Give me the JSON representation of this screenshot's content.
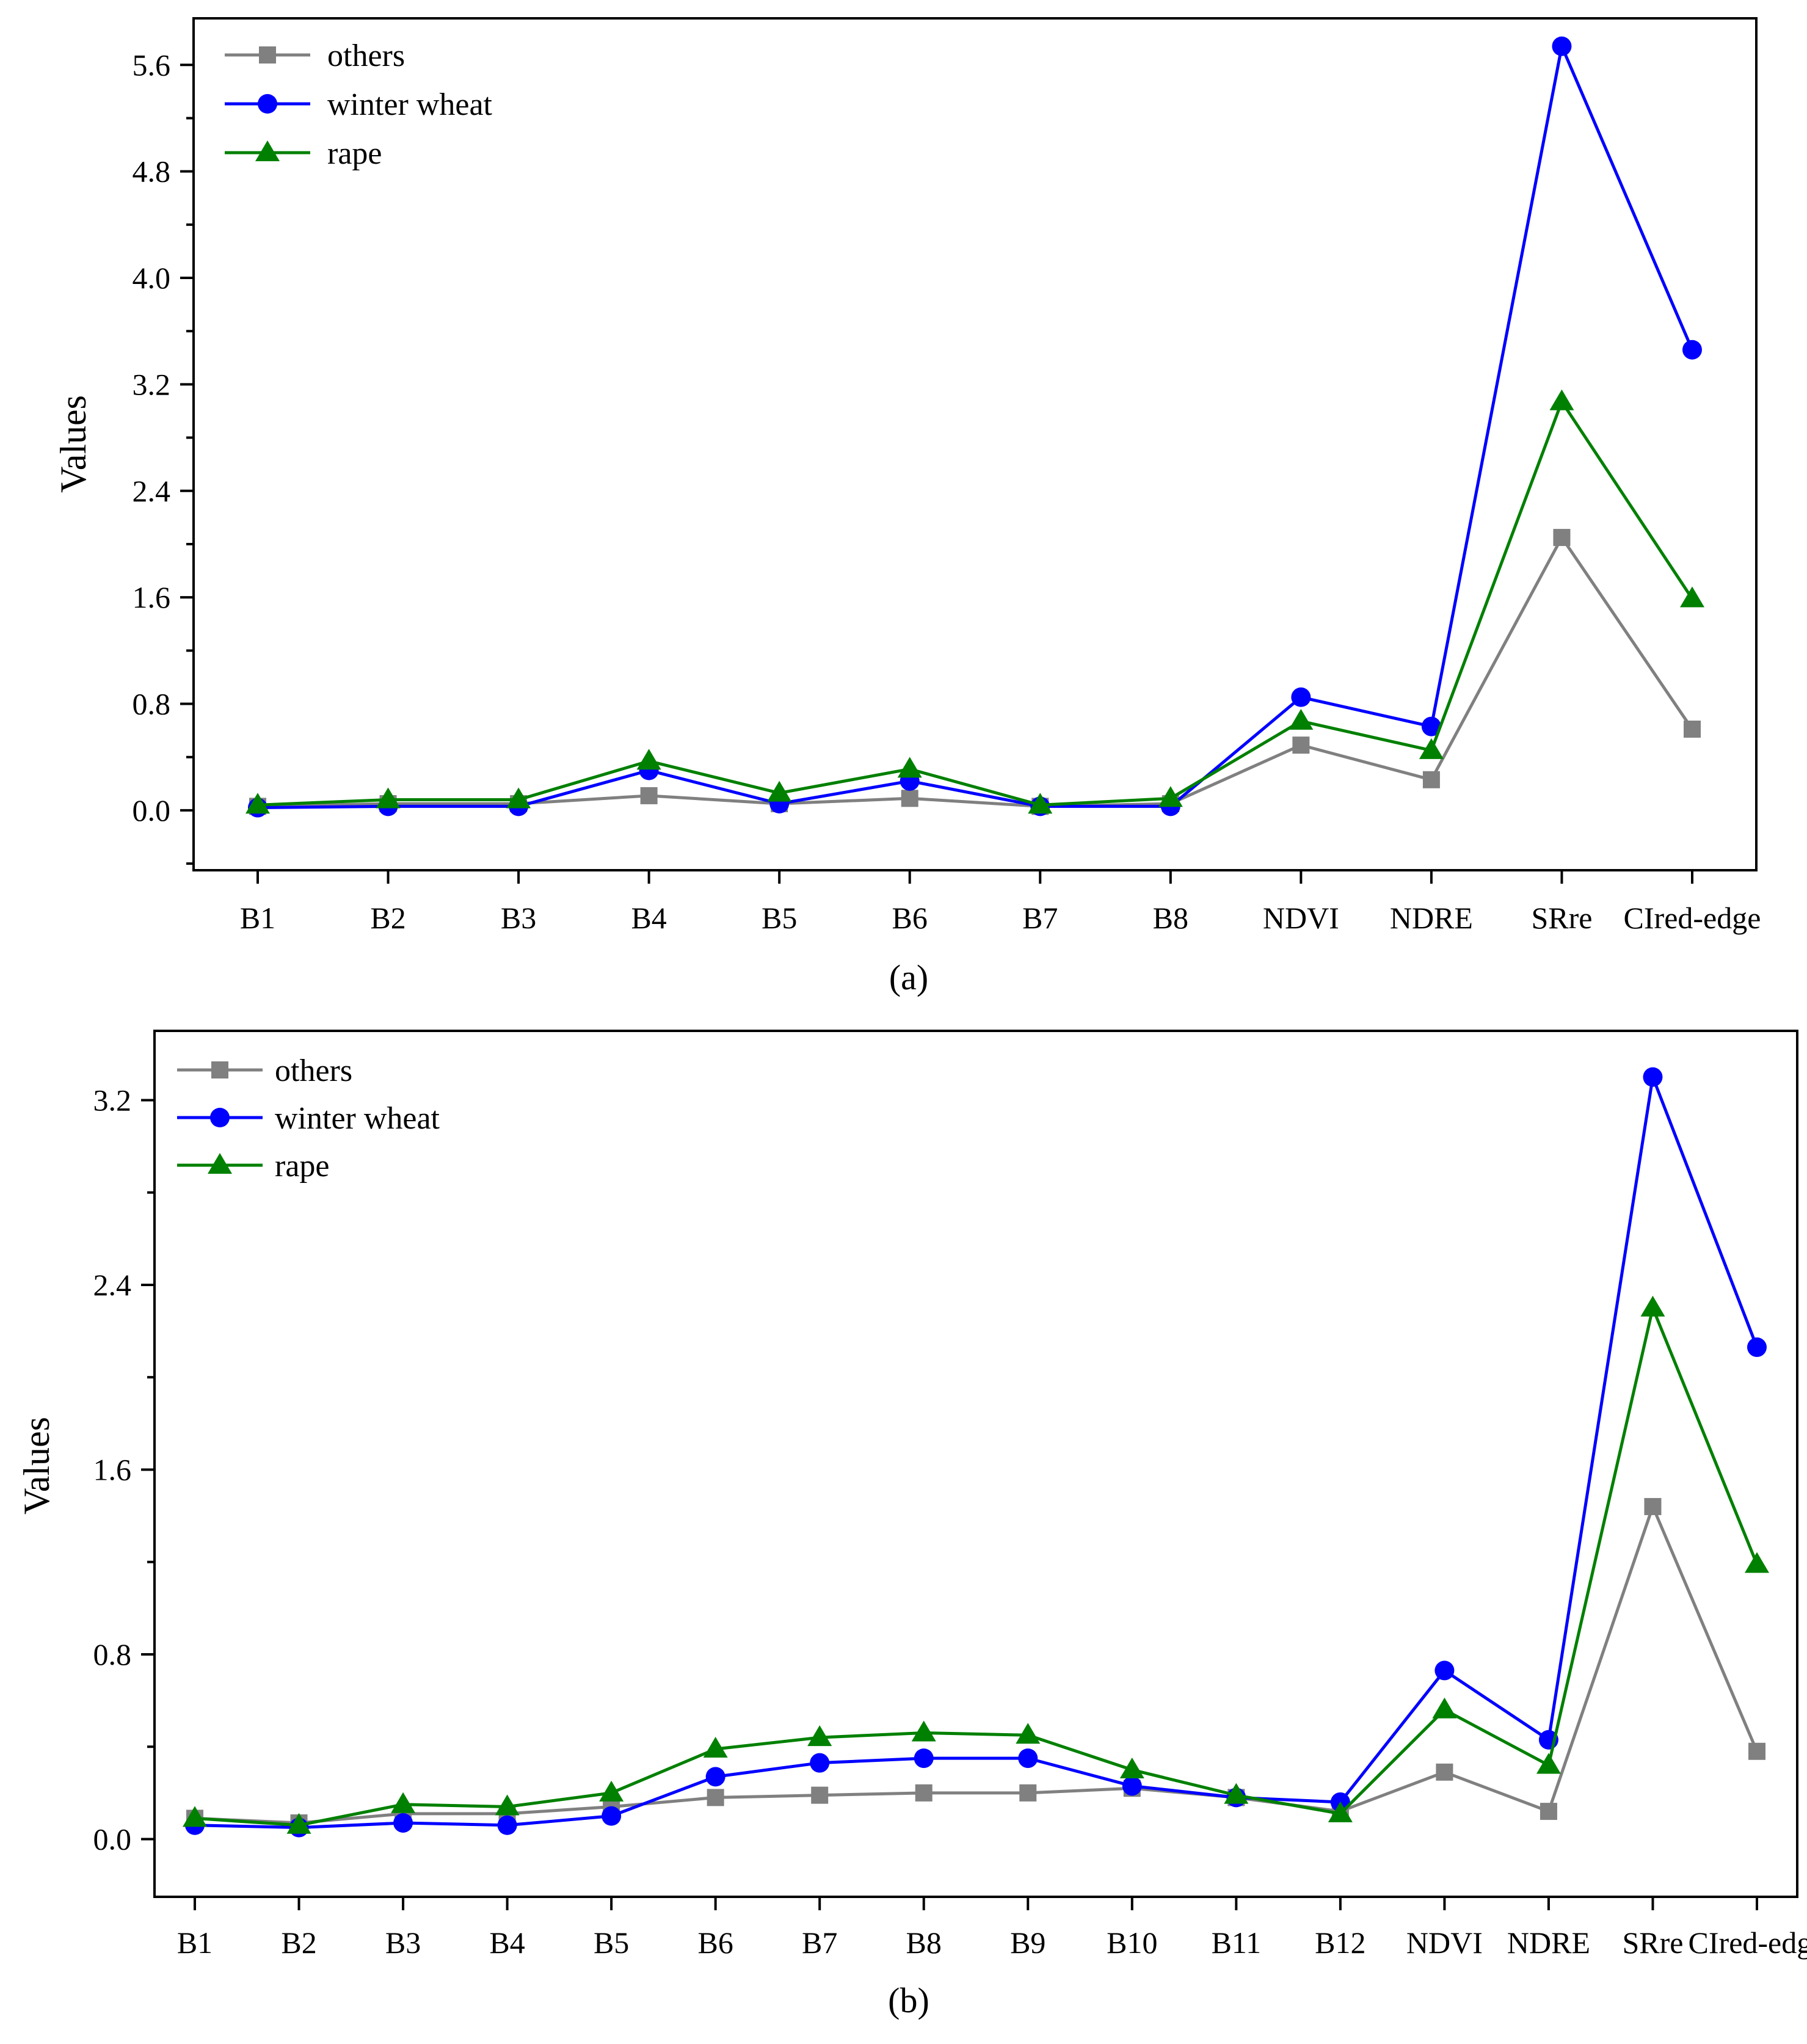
{
  "colors": {
    "others": "#808080",
    "winter_wheat": "#0000ff",
    "rape": "#008000",
    "axis": "#000000"
  },
  "chart_data": [
    {
      "type": "line",
      "panel": "a",
      "caption": "(a)",
      "ylabel": "Values",
      "xlabel": "",
      "ylim": [
        -0.45,
        5.95
      ],
      "yticks": [
        0.0,
        0.8,
        1.6,
        2.4,
        3.2,
        4.0,
        4.8,
        5.6
      ],
      "ytick_labels": [
        "0.0",
        "0.8",
        "1.6",
        "2.4",
        "3.2",
        "4.0",
        "4.8",
        "5.6"
      ],
      "categories": [
        "B1",
        "B2",
        "B3",
        "B4",
        "B5",
        "B6",
        "B7",
        "B8",
        "NDVI",
        "NDRE",
        "SRre",
        "CIred-edge"
      ],
      "legend_position": "top-left",
      "series": [
        {
          "name": "others",
          "marker": "square",
          "values": [
            0.03,
            0.05,
            0.05,
            0.11,
            0.05,
            0.09,
            0.03,
            0.05,
            0.49,
            0.23,
            2.05,
            0.61
          ]
        },
        {
          "name": "winter wheat",
          "marker": "circle",
          "values": [
            0.02,
            0.03,
            0.03,
            0.3,
            0.05,
            0.22,
            0.03,
            0.03,
            0.85,
            0.63,
            5.74,
            3.46
          ]
        },
        {
          "name": "rape",
          "marker": "triangle",
          "values": [
            0.04,
            0.08,
            0.08,
            0.37,
            0.13,
            0.31,
            0.04,
            0.09,
            0.67,
            0.45,
            3.07,
            1.59
          ]
        }
      ]
    },
    {
      "type": "line",
      "panel": "b",
      "caption": "(b)",
      "ylabel": "Values",
      "xlabel": "",
      "ylim": [
        -0.25,
        3.5
      ],
      "yticks": [
        0.0,
        0.8,
        1.6,
        2.4,
        3.2
      ],
      "ytick_labels": [
        "0.0",
        "0.8",
        "1.6",
        "2.4",
        "3.2"
      ],
      "categories": [
        "B1",
        "B2",
        "B3",
        "B4",
        "B5",
        "B6",
        "B7",
        "B8",
        "B9",
        "B10",
        "B11",
        "B12",
        "NDVI",
        "NDRE",
        "SRre",
        "CIred-edge"
      ],
      "legend_position": "top-left",
      "series": [
        {
          "name": "others",
          "marker": "square",
          "values": [
            0.09,
            0.07,
            0.11,
            0.11,
            0.14,
            0.18,
            0.19,
            0.2,
            0.2,
            0.22,
            0.18,
            0.12,
            0.29,
            0.12,
            1.44,
            0.38
          ]
        },
        {
          "name": "winter wheat",
          "marker": "circle",
          "values": [
            0.06,
            0.05,
            0.07,
            0.06,
            0.1,
            0.27,
            0.33,
            0.35,
            0.35,
            0.23,
            0.18,
            0.16,
            0.73,
            0.43,
            3.3,
            2.13
          ]
        },
        {
          "name": "rape",
          "marker": "triangle",
          "values": [
            0.09,
            0.06,
            0.15,
            0.14,
            0.2,
            0.39,
            0.44,
            0.46,
            0.45,
            0.3,
            0.19,
            0.11,
            0.56,
            0.32,
            2.3,
            1.19
          ]
        }
      ]
    }
  ]
}
